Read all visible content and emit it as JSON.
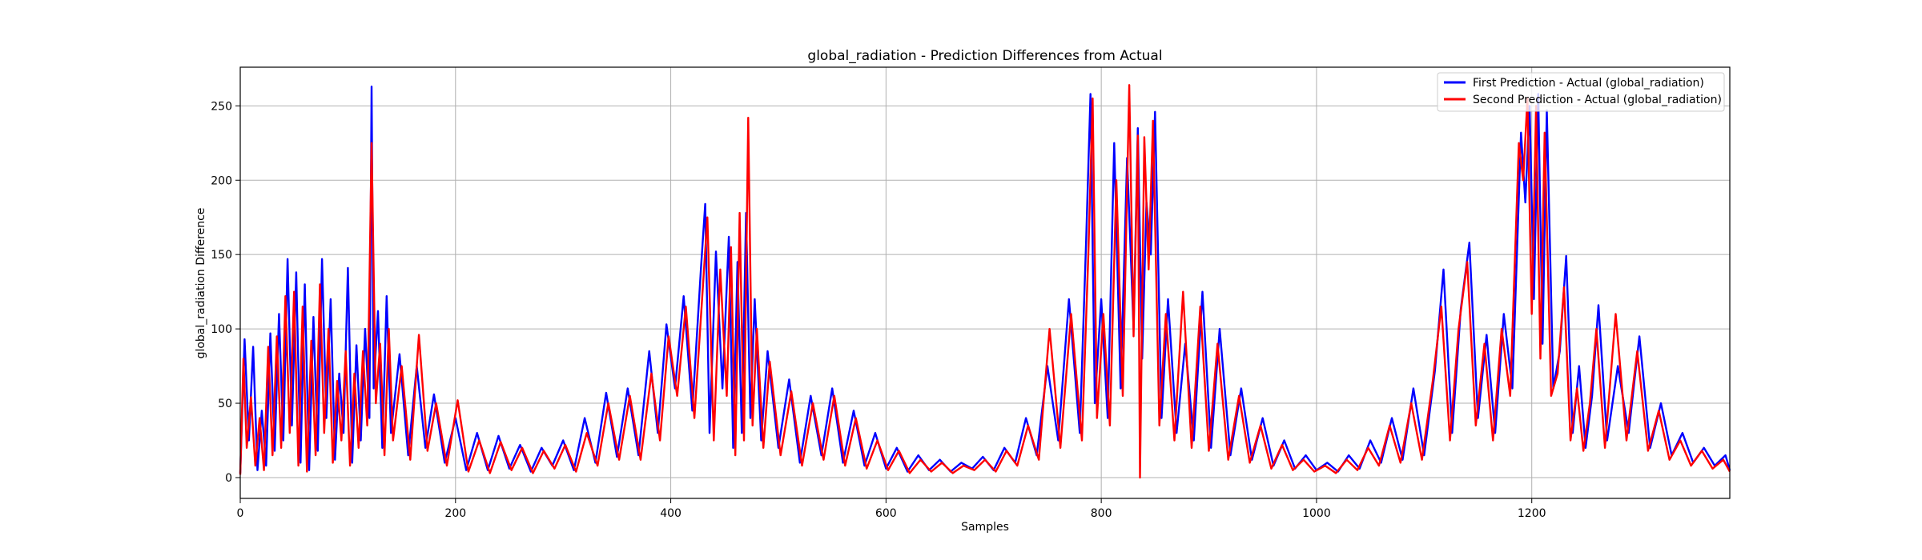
{
  "chart_data": {
    "type": "line",
    "title": "global_radiation - Prediction Differences from Actual",
    "xlabel": "Samples",
    "ylabel": "global_radiation Difference",
    "xlim": [
      0,
      1384
    ],
    "ylim": [
      -14,
      276
    ],
    "x_ticks": [
      0,
      200,
      400,
      600,
      800,
      1000,
      1200
    ],
    "y_ticks": [
      0,
      50,
      100,
      150,
      200,
      250
    ],
    "grid": true,
    "legend_position": "top-right",
    "series": [
      {
        "name": "First Prediction - Actual (global_radiation)",
        "color": "#0000ff",
        "x": [
          0,
          4,
          8,
          12,
          16,
          20,
          24,
          28,
          32,
          36,
          40,
          44,
          48,
          52,
          56,
          60,
          64,
          68,
          72,
          76,
          80,
          84,
          88,
          92,
          96,
          100,
          104,
          108,
          112,
          116,
          120,
          122,
          124,
          128,
          132,
          136,
          140,
          148,
          156,
          164,
          172,
          180,
          190,
          200,
          210,
          220,
          230,
          240,
          250,
          260,
          270,
          280,
          290,
          300,
          310,
          320,
          330,
          340,
          350,
          360,
          370,
          380,
          388,
          396,
          404,
          412,
          420,
          428,
          432,
          436,
          442,
          448,
          454,
          458,
          462,
          466,
          470,
          474,
          478,
          484,
          490,
          500,
          510,
          520,
          530,
          540,
          550,
          560,
          570,
          580,
          590,
          600,
          610,
          620,
          630,
          640,
          650,
          660,
          670,
          680,
          690,
          700,
          710,
          720,
          730,
          740,
          750,
          760,
          770,
          780,
          786,
          790,
          794,
          800,
          806,
          812,
          818,
          824,
          830,
          834,
          838,
          842,
          846,
          850,
          856,
          862,
          870,
          878,
          886,
          894,
          902,
          910,
          920,
          930,
          940,
          950,
          960,
          970,
          980,
          990,
          1000,
          1010,
          1020,
          1030,
          1040,
          1050,
          1060,
          1070,
          1080,
          1090,
          1100,
          1110,
          1118,
          1126,
          1134,
          1142,
          1150,
          1158,
          1166,
          1174,
          1182,
          1190,
          1194,
          1198,
          1202,
          1206,
          1210,
          1214,
          1220,
          1226,
          1232,
          1238,
          1244,
          1250,
          1256,
          1262,
          1270,
          1280,
          1290,
          1300,
          1310,
          1320,
          1330,
          1340,
          1350,
          1360,
          1370,
          1380,
          1384
        ],
        "y": [
          3,
          93,
          25,
          88,
          5,
          45,
          8,
          97,
          18,
          110,
          25,
          147,
          35,
          138,
          10,
          130,
          5,
          108,
          18,
          147,
          40,
          120,
          12,
          70,
          30,
          141,
          10,
          89,
          25,
          100,
          40,
          263,
          60,
          112,
          20,
          122,
          30,
          83,
          15,
          75,
          20,
          56,
          10,
          40,
          5,
          30,
          5,
          28,
          6,
          22,
          4,
          20,
          8,
          25,
          5,
          40,
          10,
          57,
          14,
          60,
          15,
          85,
          30,
          103,
          60,
          122,
          45,
          140,
          184,
          30,
          152,
          60,
          162,
          20,
          145,
          30,
          178,
          40,
          120,
          25,
          85,
          20,
          66,
          10,
          55,
          15,
          60,
          10,
          45,
          8,
          30,
          6,
          20,
          4,
          15,
          5,
          12,
          4,
          10,
          6,
          14,
          5,
          20,
          10,
          40,
          15,
          75,
          25,
          120,
          30,
          160,
          258,
          50,
          120,
          40,
          225,
          60,
          215,
          100,
          235,
          80,
          185,
          150,
          246,
          40,
          120,
          30,
          90,
          25,
          125,
          20,
          100,
          15,
          60,
          12,
          40,
          8,
          25,
          6,
          15,
          5,
          10,
          4,
          15,
          6,
          25,
          10,
          40,
          12,
          60,
          15,
          72,
          140,
          30,
          113,
          158,
          40,
          96,
          30,
          110,
          60,
          232,
          185,
          250,
          120,
          258,
          90,
          247,
          60,
          85,
          149,
          30,
          75,
          20,
          55,
          116,
          25,
          75,
          30,
          95,
          20,
          50,
          15,
          30,
          10,
          20,
          8,
          15,
          5
        ]
      },
      {
        "name": "Second Prediction - Actual (global_radiation)",
        "color": "#ff0000",
        "x": [
          0,
          3,
          6,
          10,
          14,
          18,
          22,
          26,
          30,
          34,
          38,
          42,
          46,
          50,
          54,
          58,
          62,
          66,
          70,
          74,
          78,
          82,
          86,
          90,
          94,
          98,
          102,
          106,
          110,
          114,
          118,
          122,
          126,
          130,
          134,
          138,
          142,
          150,
          158,
          166,
          174,
          182,
          192,
          202,
          212,
          222,
          232,
          242,
          252,
          262,
          272,
          282,
          292,
          302,
          312,
          322,
          332,
          342,
          352,
          362,
          372,
          382,
          390,
          398,
          406,
          414,
          422,
          430,
          434,
          440,
          446,
          452,
          456,
          460,
          464,
          468,
          472,
          476,
          480,
          486,
          492,
          502,
          512,
          522,
          532,
          542,
          552,
          562,
          572,
          582,
          592,
          602,
          612,
          622,
          632,
          642,
          652,
          662,
          672,
          682,
          692,
          702,
          712,
          722,
          732,
          742,
          752,
          762,
          772,
          782,
          788,
          792,
          796,
          802,
          808,
          814,
          820,
          826,
          830,
          834,
          836,
          840,
          844,
          848,
          854,
          860,
          868,
          876,
          884,
          892,
          900,
          908,
          918,
          928,
          938,
          948,
          958,
          968,
          978,
          988,
          998,
          1008,
          1018,
          1028,
          1038,
          1048,
          1058,
          1068,
          1078,
          1088,
          1098,
          1108,
          1116,
          1124,
          1132,
          1140,
          1148,
          1156,
          1164,
          1172,
          1180,
          1188,
          1192,
          1196,
          1200,
          1204,
          1208,
          1212,
          1218,
          1224,
          1230,
          1236,
          1242,
          1248,
          1254,
          1260,
          1268,
          1278,
          1288,
          1298,
          1308,
          1318,
          1328,
          1338,
          1348,
          1358,
          1368,
          1378,
          1384
        ],
        "y": [
          2,
          80,
          20,
          54,
          8,
          40,
          5,
          88,
          15,
          95,
          20,
          122,
          30,
          125,
          8,
          115,
          4,
          92,
          15,
          130,
          30,
          100,
          10,
          65,
          25,
          85,
          8,
          70,
          20,
          85,
          35,
          225,
          50,
          90,
          15,
          100,
          25,
          75,
          12,
          96,
          18,
          50,
          8,
          52,
          4,
          25,
          3,
          24,
          5,
          20,
          3,
          18,
          6,
          22,
          4,
          30,
          8,
          50,
          12,
          55,
          12,
          70,
          25,
          95,
          55,
          115,
          40,
          130,
          175,
          25,
          140,
          55,
          155,
          15,
          178,
          25,
          242,
          35,
          100,
          20,
          78,
          15,
          58,
          8,
          50,
          12,
          55,
          8,
          40,
          6,
          25,
          5,
          18,
          3,
          12,
          4,
          10,
          3,
          8,
          5,
          12,
          4,
          18,
          8,
          35,
          12,
          100,
          20,
          110,
          25,
          150,
          255,
          40,
          110,
          35,
          200,
          55,
          264,
          95,
          230,
          0,
          229,
          140,
          240,
          35,
          110,
          25,
          125,
          20,
          115,
          18,
          90,
          12,
          55,
          10,
          35,
          6,
          22,
          5,
          12,
          4,
          8,
          3,
          12,
          5,
          20,
          8,
          35,
          10,
          50,
          12,
          65,
          115,
          25,
          100,
          145,
          35,
          90,
          25,
          100,
          55,
          225,
          200,
          255,
          110,
          250,
          80,
          232,
          55,
          70,
          128,
          25,
          60,
          18,
          50,
          100,
          20,
          110,
          25,
          85,
          18,
          45,
          12,
          25,
          8,
          18,
          6,
          12,
          4
        ]
      }
    ]
  }
}
